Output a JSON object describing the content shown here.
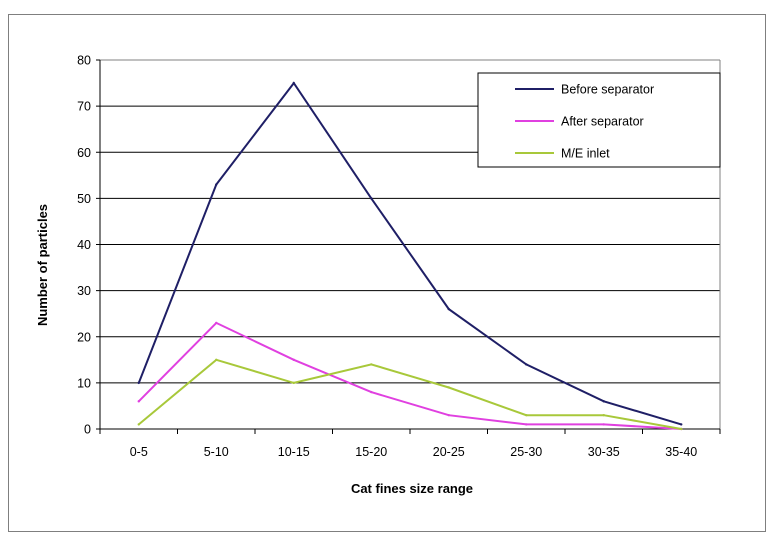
{
  "chart_data": {
    "type": "line",
    "title": "",
    "xlabel": "Cat fines size range",
    "ylabel": "Number of particles",
    "ylim": [
      0,
      80
    ],
    "yticks": [
      0,
      10,
      20,
      30,
      40,
      50,
      60,
      70,
      80
    ],
    "categories": [
      "0-5",
      "5-10",
      "10-15",
      "15-20",
      "20-25",
      "25-30",
      "30-35",
      "35-40"
    ],
    "grid": true,
    "legend_position": "top-right",
    "series": [
      {
        "name": "Before separator",
        "color": "#1f1f66",
        "values": [
          10,
          53,
          75,
          50,
          26,
          14,
          6,
          1
        ]
      },
      {
        "name": "After separator",
        "color": "#e040e0",
        "values": [
          6,
          23,
          15,
          8,
          3,
          1,
          1,
          0
        ]
      },
      {
        "name": "M/E inlet",
        "color": "#a8c83a",
        "values": [
          1,
          15,
          10,
          14,
          9,
          3,
          3,
          0
        ]
      }
    ]
  }
}
